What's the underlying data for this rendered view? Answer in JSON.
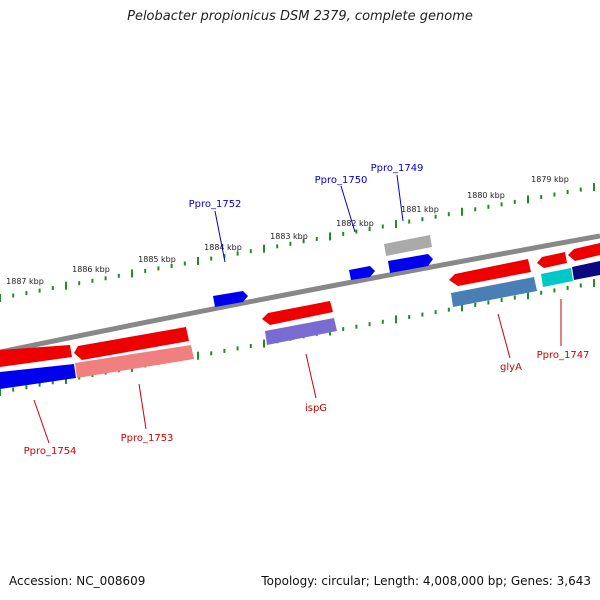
{
  "title": "Pelobacter propionicus DSM 2379, complete genome",
  "footer": {
    "accession": "Accession: NC_008609",
    "summary": "Topology: circular; Length: 4,008,000 bp; Genes: 3,643"
  },
  "colors": {
    "backbone": "#888888",
    "ruler": "#228B22",
    "ruler_text": "#222222",
    "label_red": "#cc0000",
    "label_blue": "#0000cc",
    "gene_red": "#ee0000",
    "gene_blue": "#0000ee",
    "gene_salmon": "#f08080",
    "gene_slate": "#7a6bd0",
    "gene_steel": "#4a7fb5",
    "gene_gray": "#aaaaaa",
    "gene_cyan": "#00c8c8",
    "gene_navy": "#0a0a80"
  },
  "tick_labels": [
    "1887 kbp",
    "1886 kbp",
    "1885 kbp",
    "1884 kbp",
    "1883 kbp",
    "1882 kbp",
    "1881 kbp",
    "1880 kbp",
    "1879 kbp"
  ],
  "gene_labels": [
    "Ppro_1752",
    "Ppro_1750",
    "Ppro_1749",
    "Ppro_1754",
    "Ppro_1753",
    "ispG",
    "glyA",
    "Ppro_1747"
  ],
  "label_colors": [
    "blue",
    "blue",
    "blue",
    "red",
    "red",
    "red",
    "red",
    "red"
  ]
}
